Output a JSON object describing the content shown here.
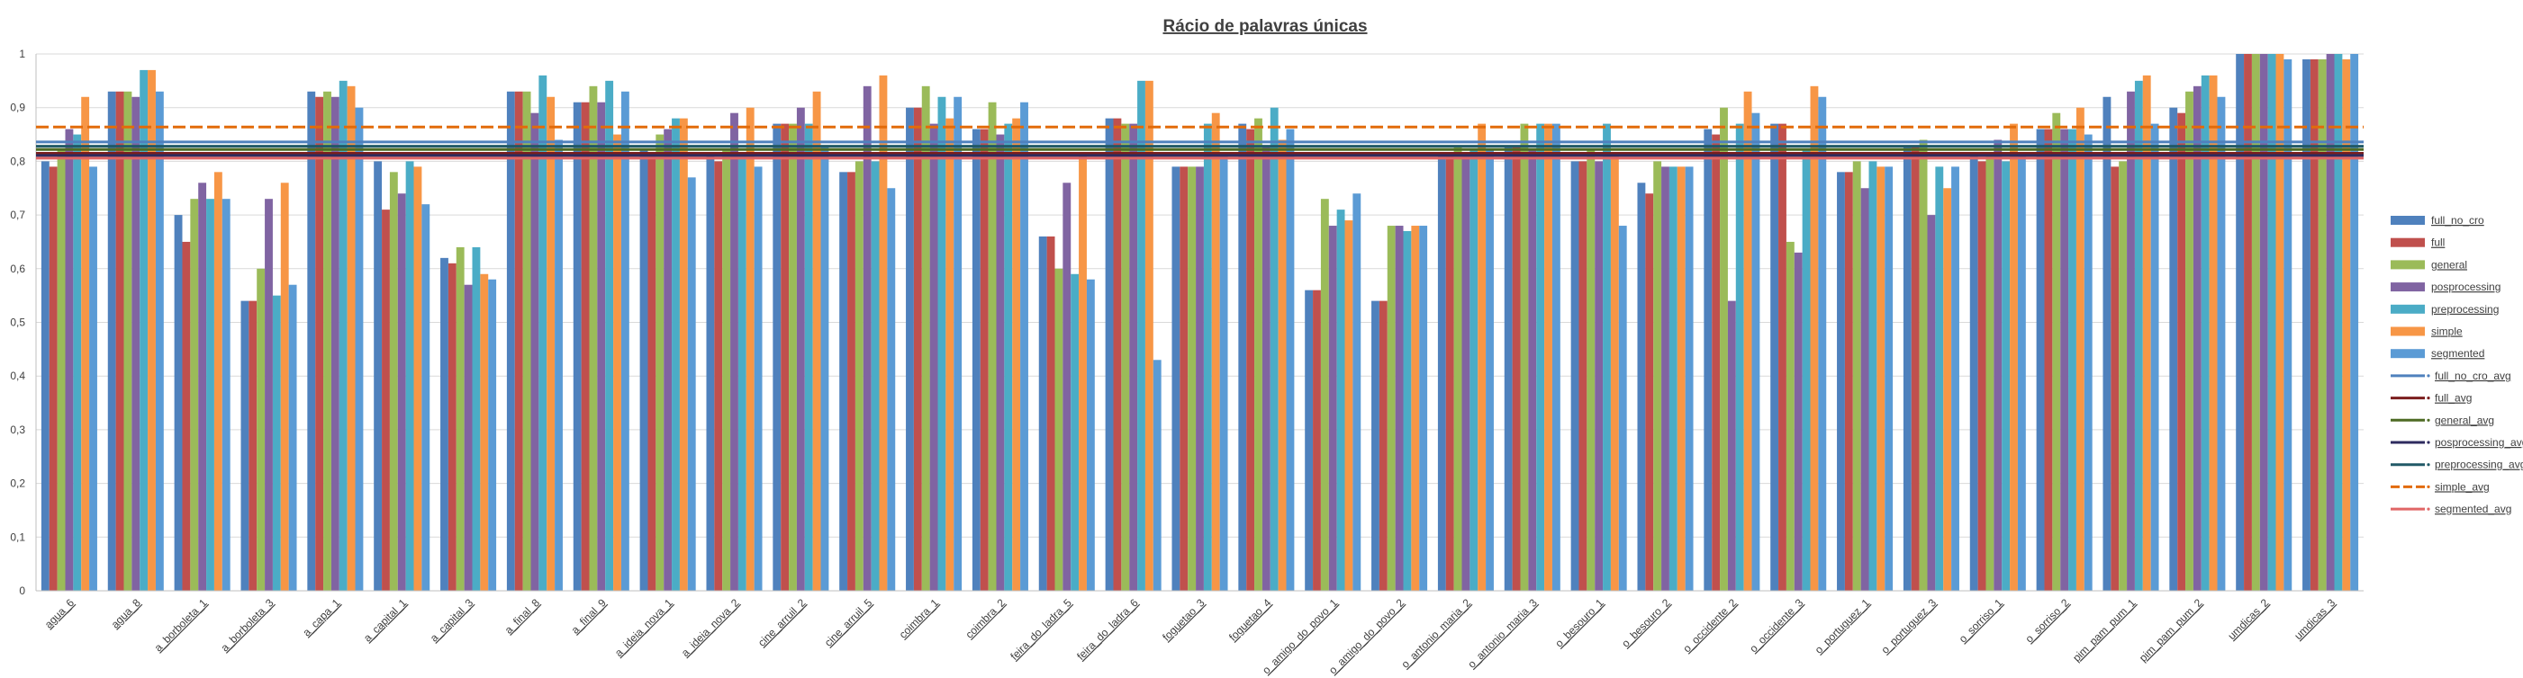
{
  "chart_data": {
    "type": "bar",
    "title": "Rácio de palavras únicas",
    "xlabel": "",
    "ylabel": "",
    "ylim": [
      0,
      1
    ],
    "yticks": [
      "0",
      "0,1",
      "0,2",
      "0,3",
      "0,4",
      "0,5",
      "0,6",
      "0,7",
      "0,8",
      "0,9",
      "1"
    ],
    "grid": true,
    "legend_position": "right",
    "categories": [
      "agua_6",
      "agua_8",
      "a_borboleta_1",
      "a_borboleta_3",
      "a_capa_1",
      "a_capital_1",
      "a_capital_3",
      "a_final_8",
      "a_final_9",
      "a_ideia_nova_1",
      "a_ideia_nova_2",
      "cine_arruil_2",
      "cine_arruil_5",
      "coimbra_1",
      "coimbra_2",
      "feira_do_ladra_5",
      "feira_do_ladra_6",
      "foguetao_3",
      "foguetao_4",
      "o_amigo_do_povo_1",
      "o_amigo_do_povo_2",
      "o_antonio_maria_2",
      "o_antonio_maria_3",
      "o_besouro_1",
      "o_besouro_2",
      "o_occidente_2",
      "o_occidente_3",
      "o_portuguez_1",
      "o_portuguez_3",
      "o_sorriso_1",
      "o_sorriso_2",
      "pim_pam_pum_1",
      "pim_pam_pum_2",
      "umdicas_2",
      "umdicas_3"
    ],
    "series": [
      {
        "name": "full_no_cro",
        "color": "#4F81BD",
        "values": [
          0.8,
          0.93,
          0.7,
          0.54,
          0.93,
          0.8,
          0.62,
          0.93,
          0.91,
          0.82,
          0.81,
          0.87,
          0.78,
          0.9,
          0.86,
          0.66,
          0.88,
          0.79,
          0.87,
          0.56,
          0.54,
          0.81,
          0.83,
          0.8,
          0.76,
          0.86,
          0.87,
          0.78,
          0.83,
          0.81,
          0.86,
          0.92,
          0.9,
          1.0,
          0.99
        ]
      },
      {
        "name": "full",
        "color": "#C0504D",
        "values": [
          0.79,
          0.93,
          0.65,
          0.54,
          0.92,
          0.71,
          0.61,
          0.93,
          0.91,
          0.81,
          0.8,
          0.87,
          0.78,
          0.9,
          0.86,
          0.66,
          0.88,
          0.79,
          0.86,
          0.56,
          0.54,
          0.81,
          0.83,
          0.8,
          0.74,
          0.85,
          0.87,
          0.78,
          0.83,
          0.8,
          0.86,
          0.79,
          0.89,
          1.0,
          0.99
        ]
      },
      {
        "name": "general",
        "color": "#9BBB59",
        "values": [
          0.82,
          0.93,
          0.73,
          0.6,
          0.93,
          0.78,
          0.64,
          0.93,
          0.94,
          0.85,
          0.82,
          0.87,
          0.8,
          0.94,
          0.91,
          0.6,
          0.87,
          0.79,
          0.88,
          0.73,
          0.68,
          0.83,
          0.87,
          0.82,
          0.8,
          0.9,
          0.65,
          0.8,
          0.84,
          0.81,
          0.89,
          0.8,
          0.93,
          1.0,
          0.99
        ]
      },
      {
        "name": "posprocessing",
        "color": "#8064A2",
        "values": [
          0.86,
          0.92,
          0.76,
          0.73,
          0.92,
          0.74,
          0.57,
          0.89,
          0.91,
          0.86,
          0.89,
          0.9,
          0.94,
          0.87,
          0.85,
          0.76,
          0.87,
          0.79,
          0.83,
          0.68,
          0.68,
          0.81,
          0.82,
          0.8,
          0.79,
          0.54,
          0.63,
          0.75,
          0.7,
          0.84,
          0.86,
          0.93,
          0.94,
          1.0,
          1.0
        ]
      },
      {
        "name": "preprocessing",
        "color": "#4BACC6",
        "values": [
          0.85,
          0.97,
          0.73,
          0.55,
          0.95,
          0.8,
          0.64,
          0.96,
          0.95,
          0.88,
          0.81,
          0.87,
          0.8,
          0.92,
          0.87,
          0.59,
          0.95,
          0.87,
          0.9,
          0.71,
          0.67,
          0.82,
          0.87,
          0.87,
          0.79,
          0.87,
          0.82,
          0.8,
          0.79,
          0.8,
          0.86,
          0.95,
          0.96,
          1.0,
          1.0
        ]
      },
      {
        "name": "simple",
        "color": "#F79646",
        "values": [
          0.92,
          0.97,
          0.78,
          0.76,
          0.94,
          0.79,
          0.59,
          0.92,
          0.85,
          0.88,
          0.9,
          0.93,
          0.96,
          0.88,
          0.88,
          0.81,
          0.95,
          0.89,
          0.84,
          0.69,
          0.68,
          0.87,
          0.87,
          0.81,
          0.79,
          0.93,
          0.94,
          0.79,
          0.75,
          0.87,
          0.9,
          0.96,
          0.96,
          1.0,
          0.99
        ]
      },
      {
        "name": "segmented",
        "color": "#5B9BD5",
        "values": [
          0.79,
          0.93,
          0.73,
          0.57,
          0.9,
          0.72,
          0.58,
          0.84,
          0.93,
          0.77,
          0.79,
          0.83,
          0.75,
          0.92,
          0.91,
          0.58,
          0.43,
          0.81,
          0.86,
          0.74,
          0.68,
          0.82,
          0.87,
          0.68,
          0.79,
          0.89,
          0.92,
          0.79,
          0.79,
          0.81,
          0.85,
          0.87,
          0.92,
          0.99,
          1.0
        ]
      }
    ],
    "averages": [
      {
        "name": "full_no_cro_avg",
        "color": "#4F81BD",
        "value": 0.836
      },
      {
        "name": "full_avg",
        "color": "#7B1E1E",
        "value": 0.815
      },
      {
        "name": "general_avg",
        "color": "#4E6B24",
        "value": 0.822
      },
      {
        "name": "posprocessing_avg",
        "color": "#2E2B5F",
        "value": 0.811
      },
      {
        "name": "preprocessing_avg",
        "color": "#215967",
        "value": 0.828
      },
      {
        "name": "simple_avg",
        "color": "#E26B0A",
        "value": 0.864
      },
      {
        "name": "segmented_avg",
        "color": "#E06666",
        "value": 0.806
      }
    ]
  }
}
